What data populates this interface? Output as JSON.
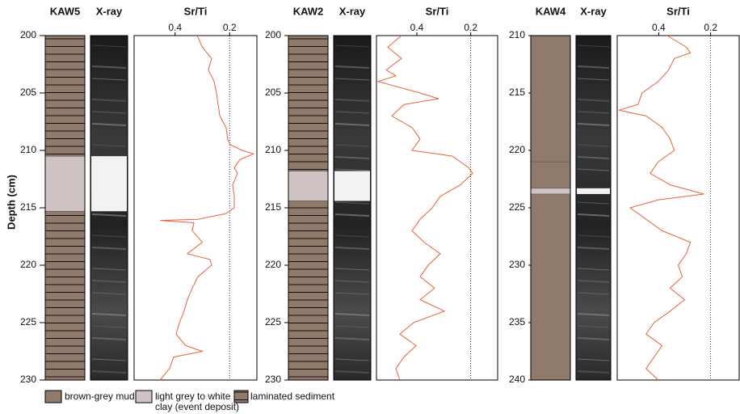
{
  "depth_label": "Depth (cm)",
  "legend": [
    {
      "lines": [
        "brown-grey mud"
      ],
      "color": "#8f7a6c"
    },
    {
      "lines": [
        "light grey to white",
        "clay (event deposit)"
      ],
      "color": "#cfc4c3"
    },
    {
      "lines": [
        "laminated sediment"
      ],
      "color": "#8f7a6c"
    }
  ],
  "chart_data": [
    {
      "type": "line",
      "core": "KAW5",
      "xray_label": "X-ray",
      "value_label": "Sr/Ti",
      "color": "#e8623a",
      "ylim": [
        200,
        230
      ],
      "yticks": [
        200,
        205,
        210,
        215,
        220,
        225,
        230
      ],
      "xlim": [
        0.55,
        0.1
      ],
      "xticks": [
        0.4,
        0.2
      ],
      "refline": 0.2,
      "mud_intervals": [],
      "clay_intervals": [
        [
          210.5,
          215.3
        ]
      ],
      "laminated_intervals": [
        [
          200,
          210.5
        ],
        [
          215.3,
          230
        ]
      ],
      "x": [
        200,
        201,
        202,
        203,
        204,
        205,
        206,
        207,
        208,
        209,
        209.5,
        210,
        210.3,
        210.8,
        211.5,
        212,
        213,
        214,
        215,
        215.5,
        216,
        216.1,
        216.3,
        217,
        218,
        219,
        219.5,
        220,
        221,
        222,
        223,
        224,
        225,
        226,
        227,
        227.5,
        228,
        229,
        230
      ],
      "values": [
        0.319,
        0.3,
        0.266,
        0.278,
        0.257,
        0.248,
        0.242,
        0.236,
        0.213,
        0.207,
        0.198,
        0.154,
        0.112,
        0.162,
        0.183,
        0.171,
        0.189,
        0.183,
        0.183,
        0.213,
        0.316,
        0.455,
        0.331,
        0.337,
        0.3,
        0.355,
        0.272,
        0.266,
        0.316,
        0.337,
        0.355,
        0.367,
        0.384,
        0.396,
        0.361,
        0.3,
        0.405,
        0.42,
        0.455
      ]
    },
    {
      "type": "line",
      "core": "KAW2",
      "xray_label": "X-ray",
      "value_label": "Sr/Ti",
      "color": "#e8623a",
      "ylim": [
        200,
        230
      ],
      "yticks": [
        200,
        205,
        210,
        215,
        220,
        225,
        230
      ],
      "xlim": [
        0.55,
        0.1
      ],
      "xticks": [
        0.4,
        0.2
      ],
      "refline": 0.2,
      "mud_intervals": [],
      "clay_intervals": [
        [
          211.8,
          214.4
        ]
      ],
      "laminated_intervals": [
        [
          200,
          211.8
        ],
        [
          214.4,
          230
        ]
      ],
      "x": [
        200,
        201,
        202,
        203,
        203.5,
        204,
        205,
        205.5,
        206,
        207,
        208,
        209,
        210,
        210.5,
        211.5,
        212,
        213,
        214,
        215,
        216,
        217,
        218,
        219,
        220,
        221,
        222,
        223,
        224,
        225,
        226,
        227,
        228,
        229,
        230
      ],
      "values": [
        0.457,
        0.508,
        0.457,
        0.514,
        0.478,
        0.544,
        0.388,
        0.319,
        0.448,
        0.493,
        0.418,
        0.388,
        0.418,
        0.268,
        0.208,
        0.193,
        0.238,
        0.313,
        0.343,
        0.388,
        0.418,
        0.373,
        0.313,
        0.358,
        0.388,
        0.334,
        0.388,
        0.298,
        0.412,
        0.463,
        0.403,
        0.448,
        0.478,
        0.463
      ]
    },
    {
      "type": "line",
      "core": "KAW4",
      "xray_label": "X-ray",
      "value_label": "Sr/Ti",
      "color": "#e8623a",
      "ylim": [
        210,
        240
      ],
      "yticks": [
        210,
        215,
        220,
        225,
        230,
        235,
        240
      ],
      "xlim": [
        0.56,
        0.09
      ],
      "xticks": [
        0.4,
        0.2
      ],
      "refline": 0.2,
      "mud_intervals": [
        [
          210,
          221
        ],
        [
          221,
          223.3
        ],
        [
          223.8,
          240
        ]
      ],
      "clay_intervals": [
        [
          223.3,
          223.8
        ]
      ],
      "laminated_intervals": [],
      "x": [
        210,
        211,
        211.5,
        212,
        213,
        214,
        215,
        216,
        216.5,
        217,
        218,
        219,
        220,
        221,
        222,
        223,
        223.8,
        224.3,
        225,
        226,
        227,
        228,
        229,
        230,
        231,
        232,
        233,
        234,
        235,
        236,
        237,
        238,
        239,
        240
      ],
      "values": [
        0.368,
        0.294,
        0.278,
        0.34,
        0.362,
        0.402,
        0.464,
        0.48,
        0.554,
        0.449,
        0.387,
        0.356,
        0.34,
        0.402,
        0.433,
        0.356,
        0.226,
        0.402,
        0.51,
        0.449,
        0.387,
        0.278,
        0.294,
        0.325,
        0.309,
        0.356,
        0.3,
        0.356,
        0.418,
        0.449,
        0.387,
        0.418,
        0.449,
        0.402
      ]
    }
  ]
}
